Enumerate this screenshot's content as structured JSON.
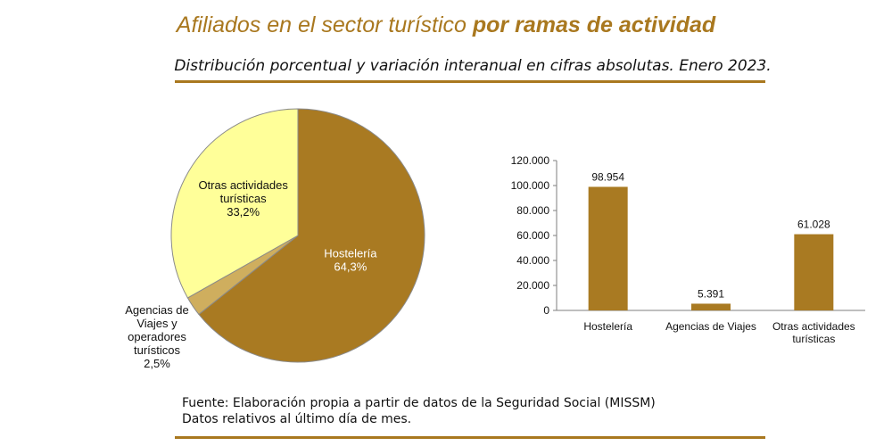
{
  "header": {
    "title_regular": "Afiliados en el sector turístico ",
    "title_bold": "por ramas de actividad",
    "subtitle": "Distribución porcentual y variación interanual en cifras absolutas. Enero 2023."
  },
  "footer": {
    "source_line": "Fuente: Elaboración propia a partir de datos de la Seguridad Social (MISSM)",
    "note_line": "Datos relativos al último día de mes."
  },
  "colors": {
    "accent": "#a9781f",
    "hosteleria": "#a97a22",
    "agencias": "#cfae5e",
    "otras": "#ffff99"
  },
  "chart_data": [
    {
      "type": "pie",
      "title": "",
      "slices": [
        {
          "label": "Hostelería",
          "value": 64.3,
          "value_label": "64,3%",
          "color": "#a97a22"
        },
        {
          "label": "Agencias de Viajes y operadores turísticos",
          "label_lines": [
            "Agencias de",
            "Viajes y",
            "operadores",
            "turísticos"
          ],
          "value": 2.5,
          "value_label": "2,5%",
          "color": "#cfae5e"
        },
        {
          "label": "Otras actividades turísticas",
          "label_lines": [
            "Otras actividades",
            "turísticas"
          ],
          "value": 33.2,
          "value_label": "33,2%",
          "color": "#ffff99"
        }
      ]
    },
    {
      "type": "bar",
      "title": "",
      "xlabel": "",
      "ylabel": "",
      "categories": [
        "Hostelería",
        "Agencias de Viajes",
        "Otras actividades turísticas"
      ],
      "category_lines": [
        [
          "Hostelería"
        ],
        [
          "Agencias de Viajes"
        ],
        [
          "Otras actividades",
          "turísticas"
        ]
      ],
      "values": [
        98954,
        5391,
        61028
      ],
      "value_labels": [
        "98.954",
        "5.391",
        "61.028"
      ],
      "ylim": [
        0,
        120000
      ],
      "yticks": [
        0,
        20000,
        40000,
        60000,
        80000,
        100000,
        120000
      ],
      "ytick_labels": [
        "0",
        "20.000",
        "40.000",
        "60.000",
        "80.000",
        "100.000",
        "120.000"
      ],
      "grid": false,
      "color": "#a97a22"
    }
  ]
}
